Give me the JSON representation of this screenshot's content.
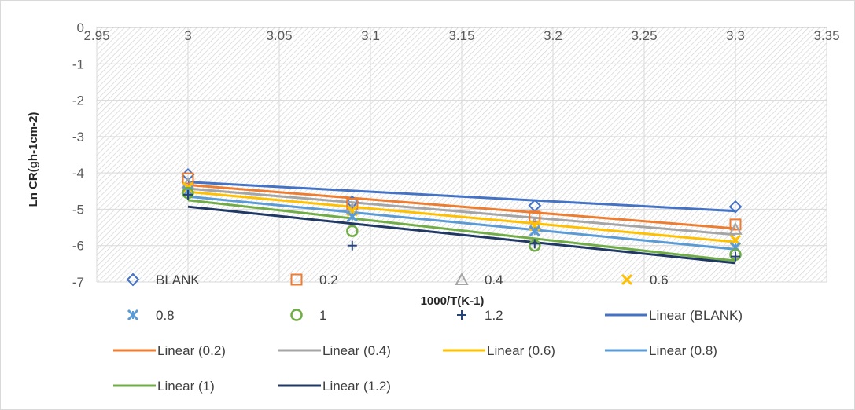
{
  "chart_data": {
    "type": "scatter",
    "xlabel": "1000/T(K-1)",
    "ylabel": "Ln CR(gh-1cm-2)",
    "xlim": [
      2.95,
      3.35
    ],
    "ylim": [
      -7,
      0
    ],
    "x_ticks": [
      "2.95",
      "3",
      "3.05",
      "3.1",
      "3.15",
      "3.2",
      "3.25",
      "3.3",
      "3.35"
    ],
    "y_ticks": [
      "0",
      "-1",
      "-2",
      "-3",
      "-4",
      "-5",
      "-6",
      "-7"
    ],
    "plot_background": "diagonal hatch",
    "legend_position": "bottom",
    "series": [
      {
        "name": "BLANK",
        "marker": "diamond",
        "color": "#4472C4",
        "x": [
          3.0,
          3.09,
          3.19,
          3.3
        ],
        "y": [
          -4.05,
          -4.8,
          -4.9,
          -4.93
        ]
      },
      {
        "name": "0.2",
        "marker": "square",
        "color": "#ED7D31",
        "x": [
          3.0,
          3.09,
          3.19,
          3.3
        ],
        "y": [
          -4.15,
          -4.85,
          -5.2,
          -5.42
        ]
      },
      {
        "name": "0.4",
        "marker": "triangle",
        "color": "#A5A5A5",
        "x": [
          3.0,
          3.09,
          3.19,
          3.3
        ],
        "y": [
          -4.3,
          -5.0,
          -5.4,
          -5.55
        ]
      },
      {
        "name": "0.6",
        "marker": "x",
        "color": "#FFC000",
        "x": [
          3.0,
          3.09,
          3.19,
          3.3
        ],
        "y": [
          -4.4,
          -5.05,
          -5.45,
          -5.85
        ]
      },
      {
        "name": "0.8",
        "marker": "star",
        "color": "#5B9BD5",
        "x": [
          3.0,
          3.09,
          3.19,
          3.3
        ],
        "y": [
          -4.5,
          -5.2,
          -5.6,
          -6.05
        ]
      },
      {
        "name": "1",
        "marker": "circle",
        "color": "#70AD47",
        "x": [
          3.0,
          3.09,
          3.19,
          3.3
        ],
        "y": [
          -4.55,
          -5.6,
          -6.0,
          -6.25
        ]
      },
      {
        "name": "1.2",
        "marker": "plus",
        "color": "#264478",
        "x": [
          3.0,
          3.09,
          3.19,
          3.3
        ],
        "y": [
          -4.6,
          -6.0,
          -5.95,
          -6.3
        ]
      }
    ],
    "trendlines": [
      {
        "name": "Linear (BLANK)",
        "color": "#4472C4",
        "x": [
          3.0,
          3.3
        ],
        "y": [
          -4.25,
          -5.05
        ]
      },
      {
        "name": "Linear (0.2)",
        "color": "#ED7D31",
        "x": [
          3.0,
          3.3
        ],
        "y": [
          -4.33,
          -5.53
        ]
      },
      {
        "name": "Linear (0.4)",
        "color": "#A5A5A5",
        "x": [
          3.0,
          3.3
        ],
        "y": [
          -4.43,
          -5.7
        ]
      },
      {
        "name": "Linear (0.6)",
        "color": "#FFC000",
        "x": [
          3.0,
          3.3
        ],
        "y": [
          -4.52,
          -5.9
        ]
      },
      {
        "name": "Linear (0.8)",
        "color": "#5B9BD5",
        "x": [
          3.0,
          3.3
        ],
        "y": [
          -4.65,
          -6.1
        ]
      },
      {
        "name": "Linear (1)",
        "color": "#70AD47",
        "x": [
          3.0,
          3.3
        ],
        "y": [
          -4.75,
          -6.42
        ]
      },
      {
        "name": "Linear (1.2)",
        "color": "#203864",
        "x": [
          3.0,
          3.3
        ],
        "y": [
          -4.93,
          -6.48
        ]
      }
    ]
  }
}
